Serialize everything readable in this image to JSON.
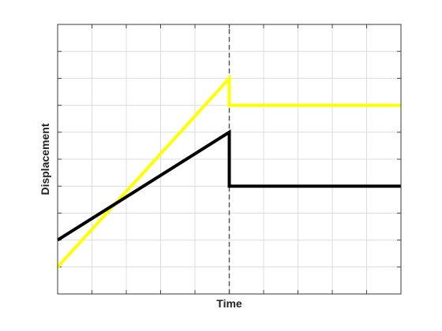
{
  "chart_data": {
    "type": "line",
    "title": "",
    "xlabel": "Time",
    "ylabel": "Displacement",
    "xlim": [
      0,
      10
    ],
    "ylim": [
      0,
      10
    ],
    "x_divisions": 10,
    "y_divisions": 10,
    "grid": true,
    "show_tick_labels": false,
    "event_x": 5,
    "series": [
      {
        "color": "#ffff00",
        "x": [
          0,
          5,
          5,
          10
        ],
        "y": [
          1,
          8,
          7,
          7
        ]
      },
      {
        "color": "#000000",
        "x": [
          0,
          5,
          5,
          10
        ],
        "y": [
          2,
          6,
          4,
          4
        ]
      }
    ]
  }
}
